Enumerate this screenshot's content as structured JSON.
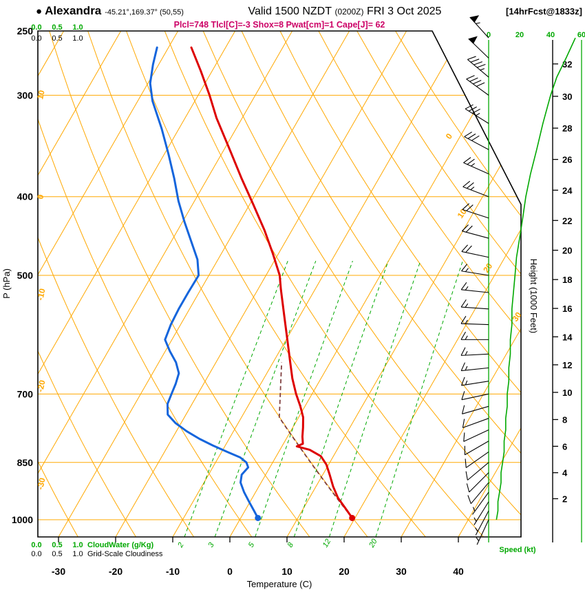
{
  "header": {
    "station_bullet": "●",
    "station": "Alexandra",
    "coords": "-45.21°,169.37° (50,55)",
    "valid_main": "Valid 1500 NZDT",
    "valid_zulu": "(0200Z)",
    "valid_date": "FRI 3 Oct 2025",
    "fcst_tag": "[14hrFcst@1833z]",
    "params": "Plcl=748 Tlcl[C]=-3 Shox=8 Pwat[cm]=1 Cape[J]= 62"
  },
  "chart_data": {
    "type": "skewt_log_p_sounding",
    "station": "Alexandra",
    "axes": {
      "pressure": {
        "label": "P (hPa)",
        "ticks": [
          250,
          300,
          400,
          500,
          700,
          850,
          1000
        ]
      },
      "temperature": {
        "label": "Temperature (C)",
        "ticks": [
          -30,
          -20,
          -10,
          0,
          10,
          20,
          30,
          40
        ]
      },
      "height": {
        "label": "Height (1000 Feet)",
        "ticks": [
          2,
          4,
          6,
          8,
          10,
          12,
          14,
          16,
          18,
          20,
          22,
          24,
          26,
          28,
          30,
          32
        ]
      },
      "speed": {
        "label": "Speed (kt)",
        "ticks": [
          0,
          20,
          40,
          60
        ]
      },
      "cloudwater": {
        "label": "CloudWater (g/Kg)",
        "ticks": [
          "0.0",
          "0.5",
          "1.0"
        ]
      },
      "cloudiness": {
        "label": "Grid-Scale Cloudiness",
        "ticks": [
          "0.0",
          "0.5",
          "1.0"
        ]
      }
    },
    "grid": {
      "isotherm_min": -80,
      "isotherm_max": 40,
      "isotherm_step": 10,
      "dry_adiabat_min": -40,
      "dry_adiabat_max": 120,
      "dry_adiabat_step": 10,
      "mixing_ratio_lines": [
        2,
        3,
        5,
        8,
        12,
        20
      ],
      "isotherm_labels_right": [
        0,
        10,
        20,
        30
      ],
      "dry_adiabat_labels_left": [
        10,
        0,
        -10,
        -20,
        -30
      ]
    },
    "sounding": {
      "temperature_c": [
        [
          995,
          19.5
        ],
        [
          970,
          17.5
        ],
        [
          940,
          15.0
        ],
        [
          910,
          13.0
        ],
        [
          880,
          11.2
        ],
        [
          855,
          9.6
        ],
        [
          835,
          7.8
        ],
        [
          820,
          5.2
        ],
        [
          812,
          2.6
        ],
        [
          806,
          3.4
        ],
        [
          790,
          2.6
        ],
        [
          770,
          1.8
        ],
        [
          748,
          0.8
        ],
        [
          725,
          -0.8
        ],
        [
          700,
          -2.8
        ],
        [
          670,
          -5.0
        ],
        [
          640,
          -7.0
        ],
        [
          600,
          -9.8
        ],
        [
          560,
          -12.8
        ],
        [
          520,
          -16.0
        ],
        [
          500,
          -17.6
        ],
        [
          470,
          -21.0
        ],
        [
          440,
          -24.8
        ],
        [
          410,
          -29.2
        ],
        [
          380,
          -34.0
        ],
        [
          350,
          -39.0
        ],
        [
          320,
          -44.5
        ],
        [
          300,
          -48.0
        ],
        [
          280,
          -52.0
        ],
        [
          262,
          -56.0
        ]
      ],
      "dewpoint_c": [
        [
          995,
          3.0
        ],
        [
          975,
          1.6
        ],
        [
          950,
          -0.2
        ],
        [
          925,
          -2.0
        ],
        [
          900,
          -3.6
        ],
        [
          880,
          -4.2
        ],
        [
          862,
          -3.8
        ],
        [
          850,
          -4.6
        ],
        [
          838,
          -6.2
        ],
        [
          825,
          -9.0
        ],
        [
          810,
          -12.2
        ],
        [
          795,
          -15.2
        ],
        [
          778,
          -18.2
        ],
        [
          760,
          -21.0
        ],
        [
          742,
          -23.2
        ],
        [
          720,
          -24.3
        ],
        [
          700,
          -24.6
        ],
        [
          680,
          -24.9
        ],
        [
          660,
          -25.4
        ],
        [
          640,
          -27.0
        ],
        [
          620,
          -29.2
        ],
        [
          600,
          -31.2
        ],
        [
          575,
          -31.7
        ],
        [
          550,
          -31.9
        ],
        [
          525,
          -31.9
        ],
        [
          500,
          -31.8
        ],
        [
          478,
          -33.6
        ],
        [
          455,
          -36.4
        ],
        [
          430,
          -39.6
        ],
        [
          405,
          -42.8
        ],
        [
          380,
          -45.8
        ],
        [
          355,
          -49.2
        ],
        [
          330,
          -53.0
        ],
        [
          305,
          -57.4
        ],
        [
          290,
          -59.6
        ],
        [
          275,
          -61.0
        ],
        [
          262,
          -62.0
        ]
      ],
      "parcel": {
        "surface_p_hpa": 995,
        "surface_temp_c": 19.5,
        "lcl_p_hpa": 748,
        "moist_top_p_hpa": 640,
        "moist_top_temp_c": -8.5
      },
      "surface": {
        "p_hpa": 995,
        "temp_c": 19.5,
        "dewpoint_c": 3.0
      }
    },
    "wind_barbs_p_spd_dir": [
      [
        1000,
        5,
        205
      ],
      [
        975,
        6,
        208
      ],
      [
        950,
        6,
        212
      ],
      [
        925,
        7,
        216
      ],
      [
        900,
        8,
        220
      ],
      [
        875,
        8,
        225
      ],
      [
        850,
        9,
        230
      ],
      [
        825,
        10,
        235
      ],
      [
        800,
        10,
        240
      ],
      [
        775,
        11,
        245
      ],
      [
        750,
        11,
        250
      ],
      [
        725,
        12,
        254
      ],
      [
        700,
        12,
        258
      ],
      [
        675,
        13,
        261
      ],
      [
        650,
        13,
        264
      ],
      [
        625,
        14,
        267
      ],
      [
        600,
        14,
        270
      ],
      [
        575,
        15,
        272
      ],
      [
        550,
        15,
        274
      ],
      [
        525,
        16,
        276
      ],
      [
        500,
        17,
        279
      ],
      [
        475,
        18,
        282
      ],
      [
        450,
        20,
        285
      ],
      [
        425,
        22,
        288
      ],
      [
        400,
        24,
        291
      ],
      [
        375,
        27,
        294
      ],
      [
        350,
        31,
        298
      ],
      [
        325,
        35,
        302
      ],
      [
        300,
        40,
        306
      ],
      [
        285,
        44,
        310
      ],
      [
        270,
        50,
        314
      ],
      [
        255,
        56,
        318
      ]
    ],
    "colors": {
      "grid_orange": "#FFA800",
      "green": "#00A800",
      "red": "#DD0000",
      "blue": "#1565DC",
      "parcel_dash": "#804040",
      "magenta": "#CC0066",
      "black": "#000000"
    }
  }
}
